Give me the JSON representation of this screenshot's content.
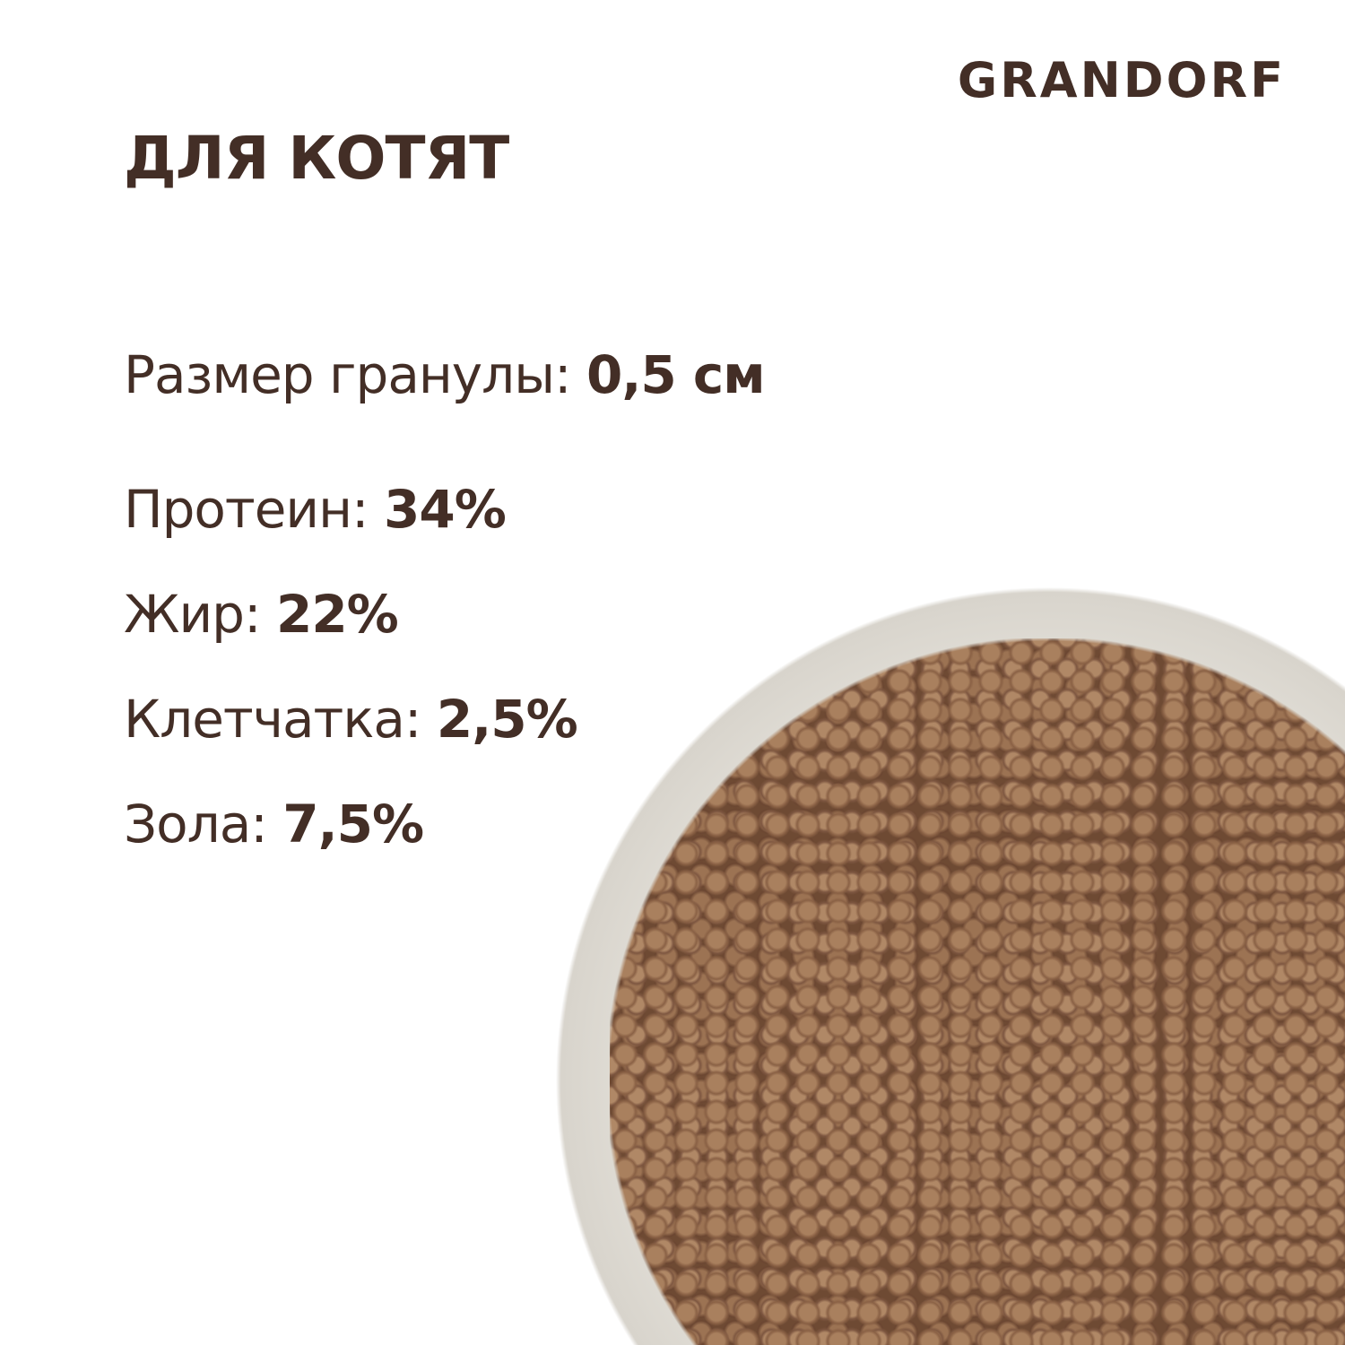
{
  "brand": "GRANDORF",
  "title": "ДЛЯ КОТЯТ",
  "specs": [
    {
      "label": "Размер гранулы:",
      "value": "0,5 см"
    },
    {
      "label": "Протеин:",
      "value": "34%"
    },
    {
      "label": "Жир:",
      "value": "22%"
    },
    {
      "label": "Клетчатка:",
      "value": "2,5%"
    },
    {
      "label": "Зола:",
      "value": "7,5%"
    }
  ],
  "colors": {
    "text": "#432e26",
    "background": "#ffffff"
  }
}
